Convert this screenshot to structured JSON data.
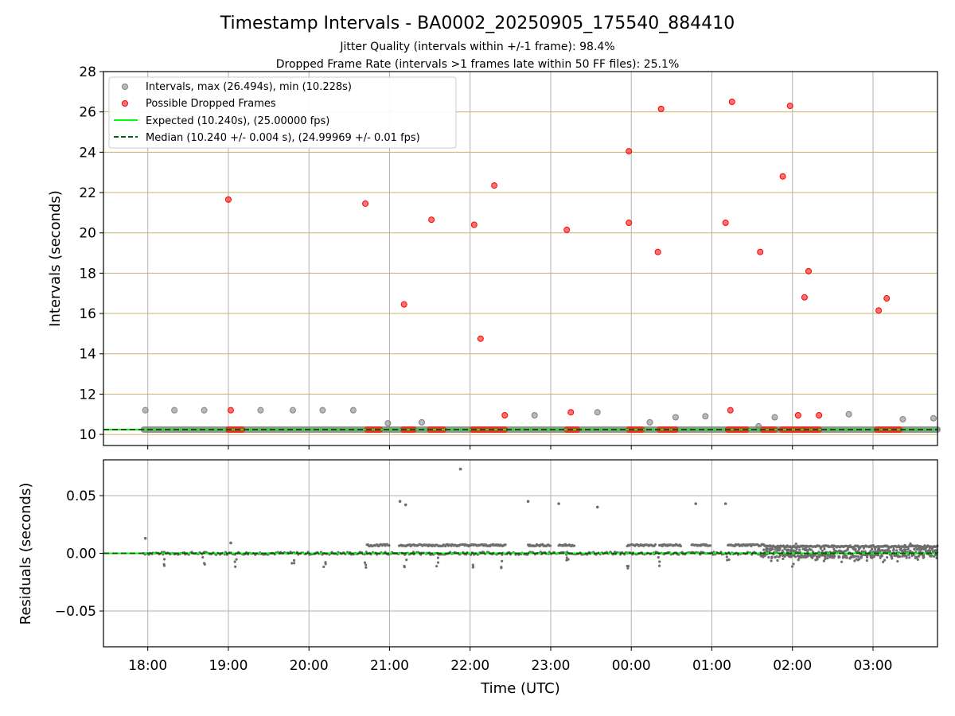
{
  "chart_data": [
    {
      "type": "scatter",
      "title": "Timestamp Intervals - BA0002_20250905_175540_884410",
      "subtitle_1": "Jitter Quality (intervals within +/-1 frame): 98.4%",
      "subtitle_2": "Dropped Frame Rate (intervals >1 frames late within 50 FF files): 25.1%",
      "ylabel": "Intervals (seconds)",
      "ylim": [
        9.45,
        28
      ],
      "yticks": [
        10,
        12,
        14,
        16,
        18,
        20,
        22,
        24,
        26,
        28
      ],
      "grid": true,
      "legend_placement": "top-left",
      "legend": [
        "Intervals, max (26.494s), min (10.228s)",
        "Possible Dropped Frames",
        "Expected (10.240s), (25.00000 fps)",
        "Median (10.240 +/- 0.004 s), (24.99969 +/- 0.01 fps)"
      ],
      "expected": 10.24,
      "median": 10.24,
      "intervals_series": {
        "name": "Intervals",
        "x_hours": [
          17.97,
          18.33,
          18.7,
          19.4,
          19.8,
          20.17,
          20.55,
          20.98,
          21.4,
          22.8,
          23.58,
          24.23,
          24.55,
          24.92,
          25.58,
          25.78,
          26.7,
          27.37,
          27.75
        ],
        "y": [
          11.2,
          11.2,
          11.2,
          11.2,
          11.2,
          11.2,
          11.2,
          10.55,
          10.6,
          10.95,
          11.1,
          10.6,
          10.85,
          10.9,
          10.4,
          10.85,
          11.0,
          10.75,
          10.8
        ]
      },
      "baseline_band": {
        "name": "Intervals (dense)",
        "x_start": 17.95,
        "x_end": 27.8,
        "y": 10.24
      },
      "dropped_series": {
        "name": "Possible Dropped Frames",
        "x_hours": [
          19.0,
          19.03,
          20.7,
          21.18,
          21.52,
          22.05,
          22.13,
          22.3,
          22.43,
          23.2,
          23.25,
          23.97,
          23.97,
          24.33,
          24.37,
          25.17,
          25.23,
          25.25,
          25.6,
          25.88,
          25.97,
          26.07,
          26.15,
          26.2,
          26.33,
          27.07,
          27.17
        ],
        "y": [
          21.65,
          11.2,
          21.45,
          16.45,
          20.65,
          20.4,
          14.75,
          22.35,
          10.95,
          20.15,
          11.1,
          24.05,
          20.5,
          19.05,
          26.15,
          20.5,
          11.2,
          26.5,
          19.05,
          22.8,
          26.3,
          10.95,
          16.8,
          18.1,
          10.95,
          16.15,
          16.75
        ]
      },
      "dropped_clusters": {
        "y": 10.24,
        "ranges": [
          [
            19.0,
            19.17
          ],
          [
            20.72,
            20.88
          ],
          [
            21.17,
            21.3
          ],
          [
            21.5,
            21.67
          ],
          [
            22.03,
            22.43
          ],
          [
            23.2,
            23.33
          ],
          [
            23.97,
            24.13
          ],
          [
            24.35,
            24.55
          ],
          [
            25.2,
            25.43
          ],
          [
            25.63,
            25.78
          ],
          [
            25.87,
            26.13
          ],
          [
            26.13,
            26.33
          ],
          [
            27.05,
            27.33
          ]
        ]
      }
    },
    {
      "type": "scatter",
      "ylabel": "Residuals (seconds)",
      "xlabel": "Time (UTC)",
      "ylim": [
        -0.081,
        0.081
      ],
      "yticks": [
        0.05,
        0.0,
        -0.05
      ],
      "ytick_labels": [
        "0.05",
        "0.00",
        "−0.05"
      ],
      "grid": true,
      "median_residual": 0.0,
      "x_range_hours": [
        17.45,
        27.8
      ],
      "xticks_hours": [
        18,
        19,
        20,
        21,
        22,
        23,
        24,
        25,
        26,
        27
      ],
      "xtick_labels": [
        "18:00",
        "19:00",
        "20:00",
        "21:00",
        "22:00",
        "23:00",
        "00:00",
        "01:00",
        "02:00",
        "03:00"
      ],
      "outliers": {
        "x_hours": [
          17.97,
          19.03,
          21.13,
          21.2,
          21.88,
          22.72,
          23.1,
          23.58,
          24.8,
          25.17
        ],
        "y": [
          0.013,
          0.009,
          0.045,
          0.042,
          0.073,
          0.045,
          0.043,
          0.04,
          0.043,
          0.043
        ]
      },
      "plateau_segments": [
        {
          "x_start": 20.72,
          "x_end": 21.0,
          "y": 0.007
        },
        {
          "x_start": 21.12,
          "x_end": 21.55,
          "y": 0.007
        },
        {
          "x_start": 21.55,
          "x_end": 22.45,
          "y": 0.007
        },
        {
          "x_start": 22.72,
          "x_end": 23.0,
          "y": 0.007
        },
        {
          "x_start": 23.1,
          "x_end": 23.3,
          "y": 0.007
        },
        {
          "x_start": 23.95,
          "x_end": 24.3,
          "y": 0.007
        },
        {
          "x_start": 24.35,
          "x_end": 24.62,
          "y": 0.007
        },
        {
          "x_start": 24.75,
          "x_end": 24.98,
          "y": 0.007
        },
        {
          "x_start": 25.2,
          "x_end": 25.65,
          "y": 0.007
        },
        {
          "x_start": 25.65,
          "x_end": 27.8,
          "y": 0.006
        }
      ]
    }
  ]
}
